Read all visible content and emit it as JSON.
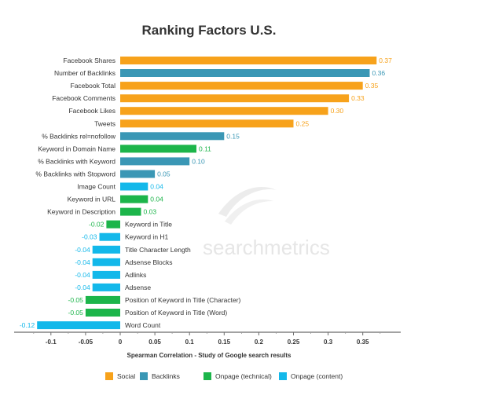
{
  "watermark": "searchmetrics",
  "colors": {
    "Social": "#f7a21b",
    "Backlinks": "#3a97b5",
    "Onpage (technical)": "#1cb54a",
    "Onpage (content)": "#13b8ea"
  },
  "chart_data": {
    "type": "bar",
    "orientation": "horizontal",
    "title": "Ranking Factors U.S.",
    "xlabel": "Spearman Correlation - Study of Google search results",
    "ylabel": "",
    "xlim": [
      -0.13,
      0.4
    ],
    "xticks": [
      -0.1,
      -0.05,
      0,
      0.05,
      0.1,
      0.15,
      0.2,
      0.25,
      0.3,
      0.35
    ],
    "xtick_labels": [
      "-0.1",
      "-0.05",
      "0",
      "0.05",
      "0.1",
      "0.15",
      "0.2",
      "0.25",
      "0.3",
      "0.35"
    ],
    "grid": false,
    "legend_position": "bottom",
    "legend": [
      "Social",
      "Backlinks",
      "Onpage (technical)",
      "Onpage (content)"
    ],
    "categories": [
      "Facebook Shares",
      "Number of Backlinks",
      "Facebook Total",
      "Facebook Comments",
      "Facebook Likes",
      "Tweets",
      "% Backlinks rel=nofollow",
      "Keyword in Domain Name",
      "% Backlinks with Keyword",
      "% Backlinks with Stopword",
      "Image Count",
      "Keyword in URL",
      "Keyword in Description",
      "Keyword in Title",
      "Keyword in H1",
      "Title Character Length",
      "Adsense Blocks",
      "Adlinks",
      "Adsense",
      "Position of Keyword in Title (Character)",
      "Position of Keyword in Title (Word)",
      "Word Count"
    ],
    "values": [
      0.37,
      0.36,
      0.35,
      0.33,
      0.3,
      0.25,
      0.15,
      0.11,
      0.1,
      0.05,
      0.04,
      0.04,
      0.03,
      -0.02,
      -0.03,
      -0.04,
      -0.04,
      -0.04,
      -0.04,
      -0.05,
      -0.05,
      -0.12
    ],
    "value_labels": [
      "0.37",
      "0.36",
      "0.35",
      "0.33",
      "0.30",
      "0.25",
      "0.15",
      "0.11",
      "0.10",
      "0.05",
      "0.04",
      "0.04",
      "0.03",
      "-0.02",
      "-0.03",
      "-0.04",
      "-0.04",
      "-0.04",
      "-0.04",
      "-0.05",
      "-0.05",
      "-0.12"
    ],
    "groups": [
      "Social",
      "Backlinks",
      "Social",
      "Social",
      "Social",
      "Social",
      "Backlinks",
      "Onpage (technical)",
      "Backlinks",
      "Backlinks",
      "Onpage (content)",
      "Onpage (technical)",
      "Onpage (technical)",
      "Onpage (technical)",
      "Onpage (content)",
      "Onpage (content)",
      "Onpage (content)",
      "Onpage (content)",
      "Onpage (content)",
      "Onpage (technical)",
      "Onpage (technical)",
      "Onpage (content)"
    ]
  }
}
